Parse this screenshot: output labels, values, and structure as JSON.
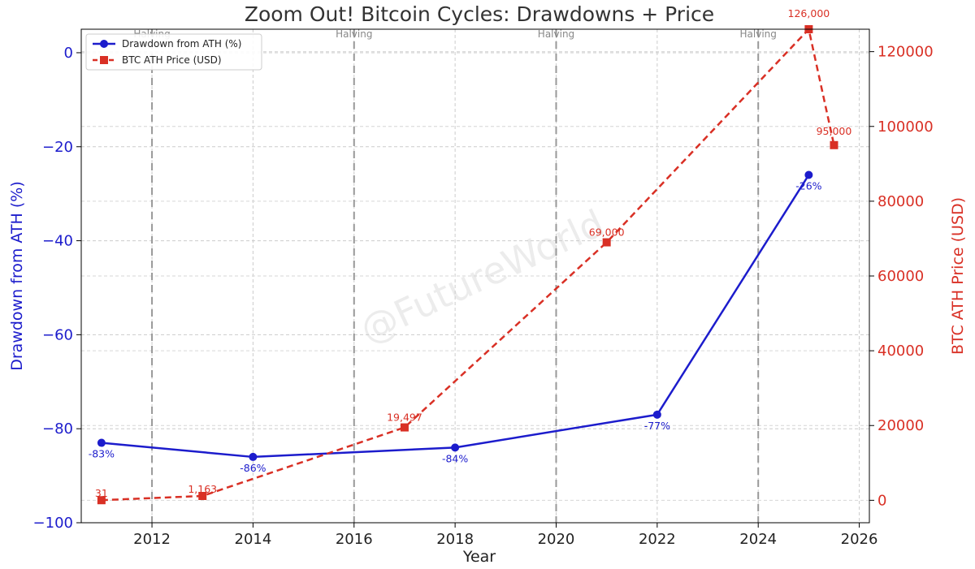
{
  "chart_data": {
    "type": "line",
    "title": "Zoom Out! Bitcoin Cycles: Drawdowns + Price",
    "xlabel": "Year",
    "xlim": [
      2010.6,
      2026.2
    ],
    "xticks": [
      2012,
      2014,
      2016,
      2018,
      2020,
      2022,
      2024,
      2026
    ],
    "y_left": {
      "label": "Drawdown from ATH (%)",
      "ylim": [
        -100,
        5
      ],
      "ticks": [
        0,
        -20,
        -40,
        -60,
        -80,
        -100
      ],
      "tick_labels": [
        "0",
        "−20",
        "−40",
        "−60",
        "−80",
        "−100"
      ],
      "color": "#1c1ccc"
    },
    "y_right": {
      "label": "BTC ATH Price (USD)",
      "ylim": [
        -6000,
        126000
      ],
      "ticks": [
        0,
        20000,
        40000,
        60000,
        80000,
        100000,
        120000
      ],
      "tick_labels": [
        "0",
        "20000",
        "40000",
        "60000",
        "80000",
        "100000",
        "120000"
      ],
      "color": "#d93025"
    },
    "halvings": {
      "label": "Halving",
      "years": [
        2012,
        2016,
        2020,
        2024
      ]
    },
    "grid": true,
    "legend": "top-left",
    "watermark": "@FutureWorld",
    "series": [
      {
        "name": "Drawdown from ATH (%)",
        "axis": "left",
        "color": "#1c1ccc",
        "style": "solid",
        "marker": "circle",
        "x": [
          2011,
          2014,
          2018,
          2022,
          2025
        ],
        "y": [
          -83,
          -86,
          -84,
          -77,
          -26
        ],
        "labels": [
          "-83%",
          "-86%",
          "-84%",
          "-77%",
          "-26%"
        ]
      },
      {
        "name": "BTC ATH Price (USD)",
        "axis": "right",
        "color": "#d93025",
        "style": "dashed",
        "marker": "square",
        "x": [
          2011,
          2013,
          2017,
          2021,
          2025,
          2025.5
        ],
        "y": [
          31,
          1163,
          19497,
          69000,
          126000,
          95000
        ],
        "labels": [
          "31",
          "1,163",
          "19,497",
          "69,000",
          "126,000",
          "95,000"
        ]
      }
    ]
  }
}
